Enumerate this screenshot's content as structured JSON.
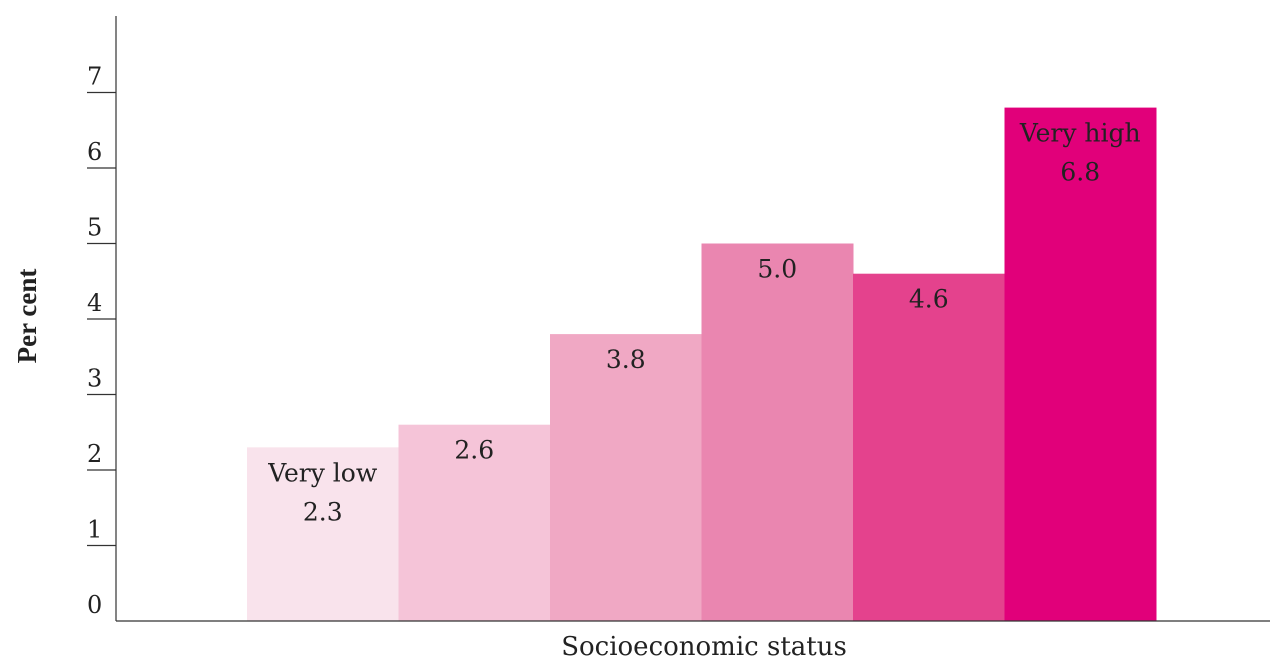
{
  "chart_data": {
    "type": "bar",
    "categories": [
      "Very low",
      "",
      "",
      "",
      "",
      "Very high"
    ],
    "values": [
      2.3,
      2.6,
      3.8,
      5.0,
      4.6,
      6.8
    ],
    "value_labels": [
      "2.3",
      "2.6",
      "3.8",
      "5.0",
      "4.6",
      "6.8"
    ],
    "bar_colors": [
      "#f9e3ec",
      "#f5c4d8",
      "#f0a8c4",
      "#ea86b0",
      "#e4428d",
      "#e1007a"
    ],
    "xlabel": "Socioeconomic status",
    "ylabel": "Per cent",
    "ylim": [
      0,
      7.8
    ],
    "yticks": [
      0,
      1,
      2,
      3,
      4,
      5,
      6,
      7
    ],
    "ytick_labels": [
      "0",
      "1",
      "2",
      "3",
      "4",
      "5",
      "6",
      "7"
    ],
    "grid": false,
    "legend": "none"
  }
}
